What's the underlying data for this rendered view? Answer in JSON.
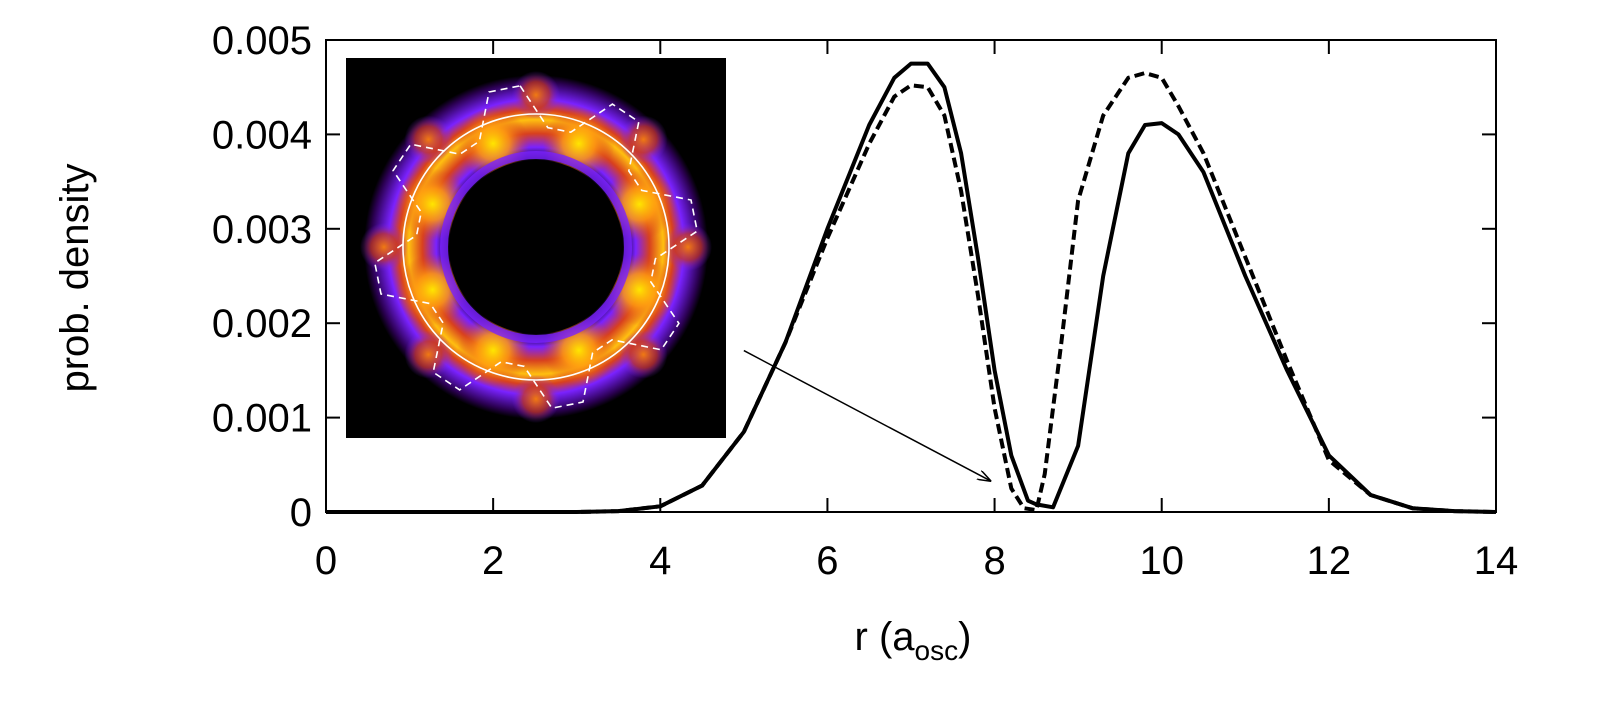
{
  "chart_data": {
    "type": "line",
    "xlabel": "r (a",
    "xlabel_sub": "osc",
    "xlabel_close": ")",
    "ylabel": "prob. density",
    "xlim": [
      0,
      14
    ],
    "ylim": [
      0,
      0.005
    ],
    "x_ticks": [
      "0",
      "2",
      "4",
      "6",
      "8",
      "10",
      "12",
      "14"
    ],
    "y_ticks": [
      "0",
      "0.001",
      "0.002",
      "0.003",
      "0.004",
      "0.005"
    ],
    "grid": false,
    "legend": "none",
    "series": [
      {
        "style": "solid",
        "color": "#000000",
        "x": [
          0,
          3,
          3.5,
          4.0,
          4.5,
          5.0,
          5.5,
          6.0,
          6.5,
          6.8,
          7.0,
          7.2,
          7.4,
          7.6,
          7.8,
          8.0,
          8.2,
          8.4,
          8.5,
          8.7,
          9.0,
          9.3,
          9.6,
          9.8,
          10.0,
          10.2,
          10.5,
          11.0,
          11.5,
          12.0,
          12.5,
          13.0,
          13.5,
          14.0
        ],
        "y": [
          0,
          0,
          1e-05,
          6e-05,
          0.00028,
          0.00085,
          0.0018,
          0.003,
          0.0041,
          0.0046,
          0.00475,
          0.00475,
          0.0045,
          0.0038,
          0.0027,
          0.0015,
          0.0006,
          0.00012,
          8e-05,
          5e-05,
          0.0007,
          0.0025,
          0.0038,
          0.0041,
          0.00412,
          0.004,
          0.0036,
          0.0025,
          0.0015,
          0.0006,
          0.00018,
          4e-05,
          1e-05,
          0
        ]
      },
      {
        "style": "dashed",
        "color": "#000000",
        "x": [
          0,
          3,
          3.5,
          4.0,
          4.5,
          5.0,
          5.5,
          6.0,
          6.5,
          6.8,
          7.0,
          7.2,
          7.4,
          7.6,
          7.8,
          8.0,
          8.2,
          8.35,
          8.5,
          8.6,
          8.8,
          9.0,
          9.3,
          9.6,
          9.8,
          10.0,
          10.2,
          10.5,
          11.0,
          11.5,
          12.0,
          12.5,
          13.0,
          13.5,
          14.0
        ],
        "y": [
          0,
          0,
          1e-05,
          6e-05,
          0.00028,
          0.00085,
          0.0018,
          0.0029,
          0.0039,
          0.0044,
          0.00452,
          0.0045,
          0.0042,
          0.0034,
          0.0023,
          0.0011,
          0.00025,
          4e-05,
          2e-05,
          0.0004,
          0.0018,
          0.0033,
          0.0042,
          0.0046,
          0.00465,
          0.0046,
          0.0043,
          0.0038,
          0.0027,
          0.0016,
          0.00055,
          0.00018,
          4e-05,
          1e-05,
          0
        ]
      }
    ],
    "annotations": [
      {
        "type": "arrow",
        "from": [
          5.0,
          0.00171
        ],
        "to": [
          7.95,
          0.00033
        ]
      }
    ],
    "inset": {
      "type": "heatmap-image",
      "description_colors": [
        "#000000",
        "#7a22ff",
        "#e8501a",
        "#ffe200"
      ],
      "lobes": 8
    }
  }
}
